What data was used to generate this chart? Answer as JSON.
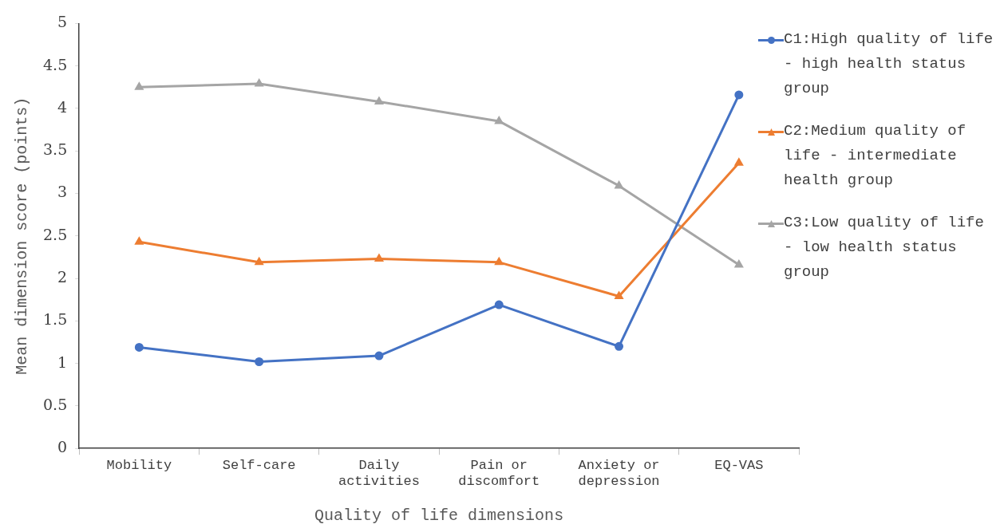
{
  "chart_data": {
    "type": "line",
    "xlabel": "Quality of life dimensions",
    "ylabel": "Mean dimension score (points)",
    "categories": [
      "Mobility",
      "Self-care",
      "Daily activities",
      "Pain or discomfort",
      "Anxiety or depression",
      "EQ-VAS"
    ],
    "ylim": [
      0,
      5
    ],
    "yticks": [
      0,
      0.5,
      1,
      1.5,
      2,
      2.5,
      3,
      3.5,
      4,
      4.5,
      5
    ],
    "grid": false,
    "legend": "right",
    "line_style": "solid",
    "series": [
      {
        "name": "C1:High quality of life - high health status group",
        "color": "#4472c4",
        "marker": "circle",
        "values": [
          1.19,
          1.02,
          1.09,
          1.69,
          1.2,
          4.16
        ]
      },
      {
        "name": "C2:Medium quality of life - intermediate health group",
        "color": "#ed7d31",
        "marker": "triangle",
        "values": [
          2.43,
          2.19,
          2.23,
          2.19,
          1.79,
          3.36
        ]
      },
      {
        "name": "C3:Low quality of life - low health status group",
        "color": "#a5a5a5",
        "marker": "triangle",
        "values": [
          4.25,
          4.29,
          4.08,
          3.85,
          3.09,
          2.16
        ]
      }
    ]
  }
}
